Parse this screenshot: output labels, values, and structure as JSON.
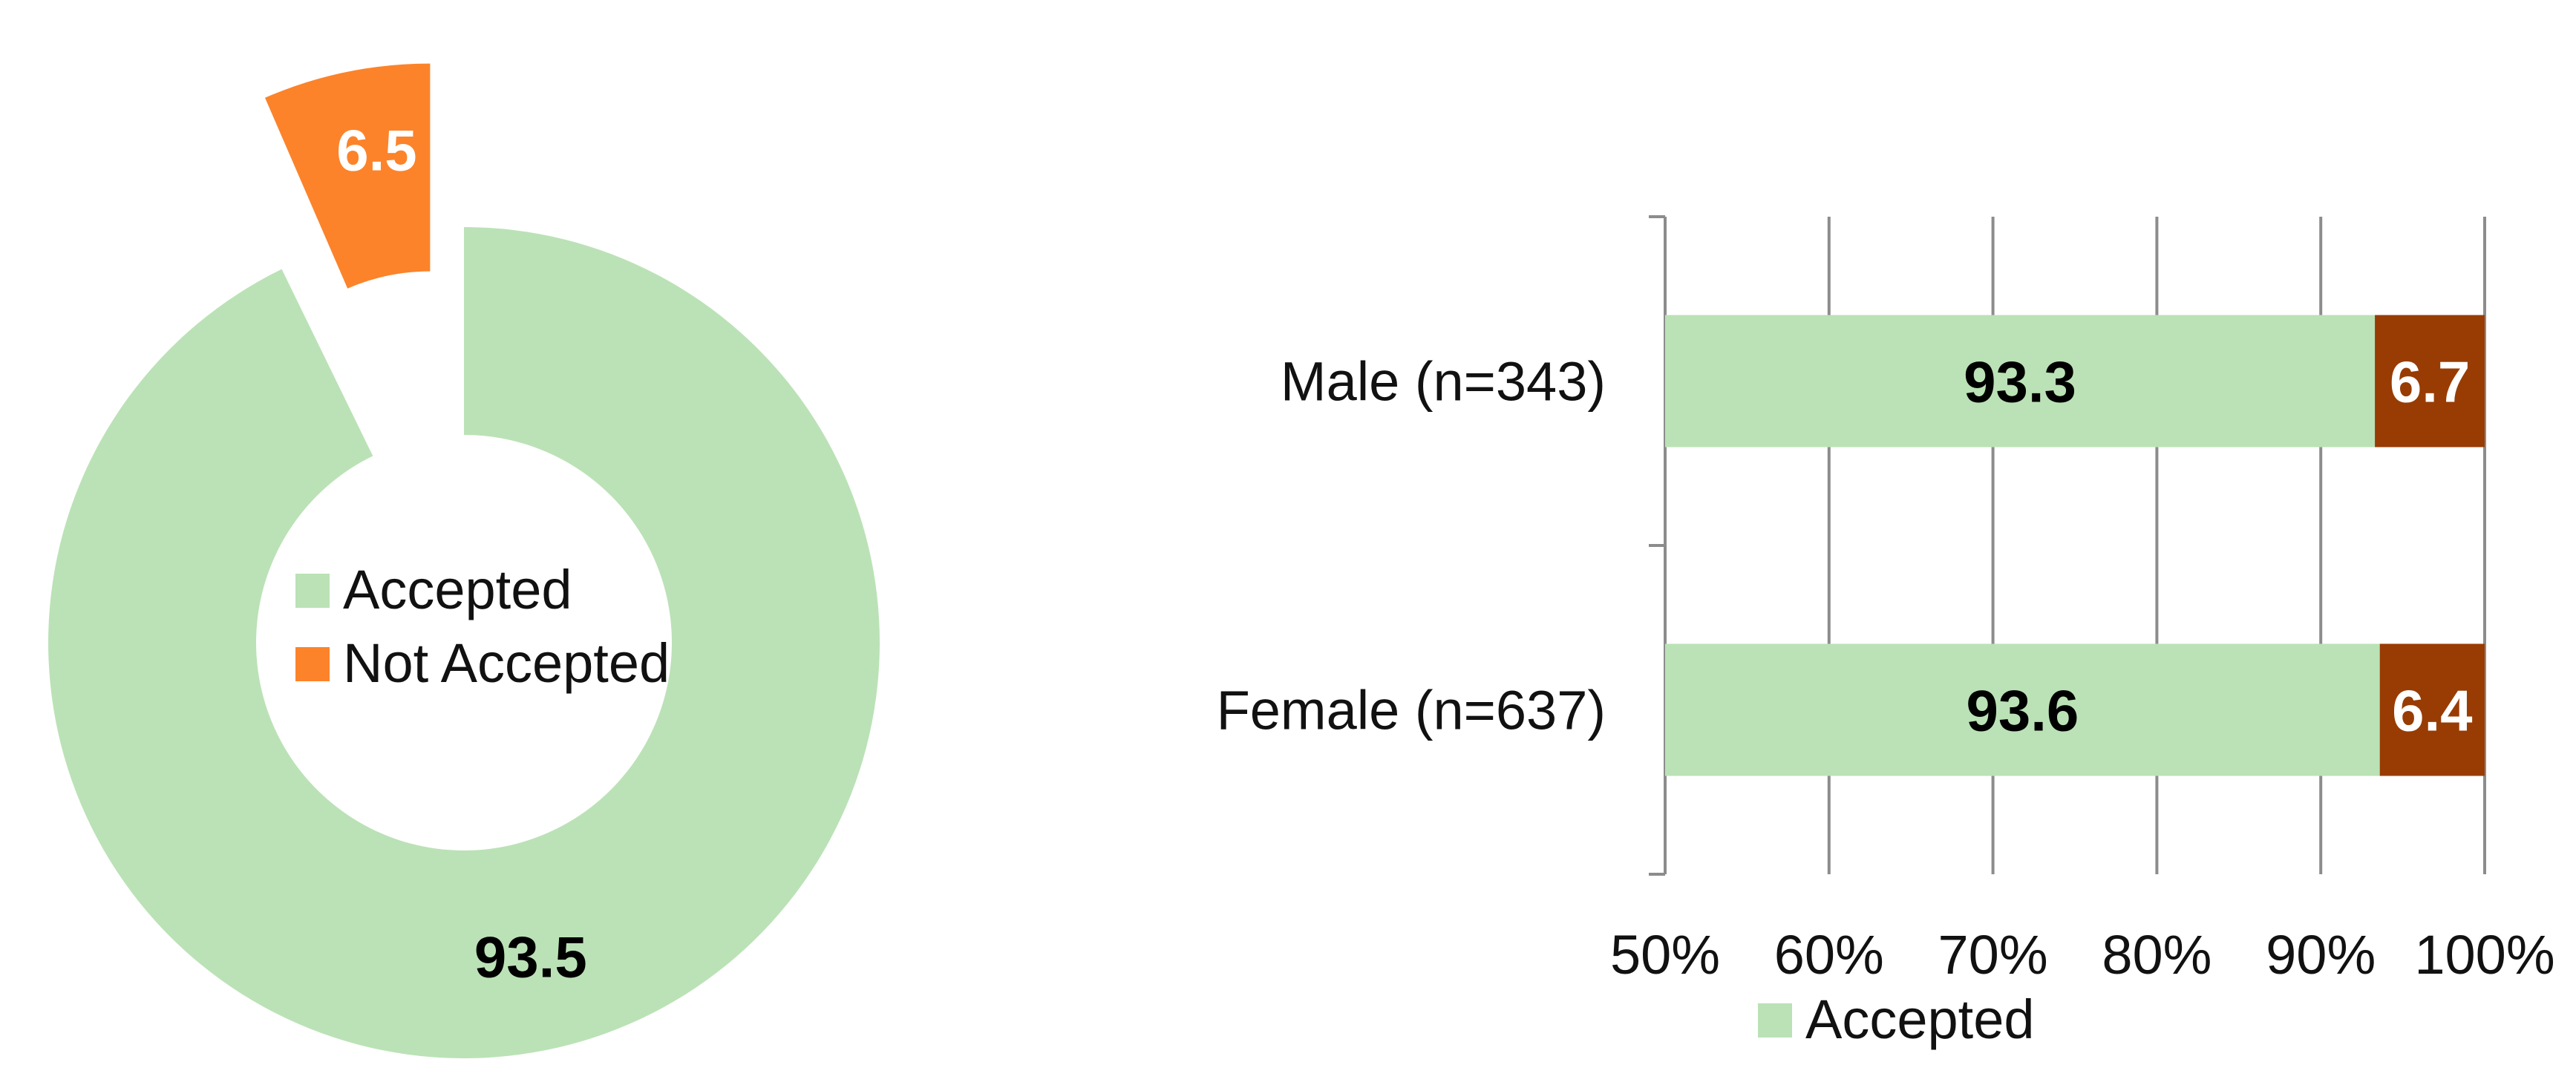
{
  "colors": {
    "accepted": "#bbe2b6",
    "not_accepted_donut": "#fc832a",
    "not_accepted_bar": "#983c04",
    "grid": "#8c8c8c"
  },
  "chart_data": [
    {
      "type": "pie",
      "variant": "donut",
      "exploded_slice": "Not Accepted",
      "categories": [
        "Accepted",
        "Not Accepted"
      ],
      "values": [
        93.5,
        6.5
      ],
      "data_labels": [
        "93.5",
        "6.5"
      ],
      "legend": {
        "placement": "center",
        "entries": [
          "Accepted",
          "Not Accepted"
        ]
      }
    },
    {
      "type": "bar",
      "orientation": "horizontal",
      "stacked": "percent",
      "categories": [
        "Male (n=343)",
        "Female (n=637)"
      ],
      "series": [
        {
          "name": "Accepted",
          "values": [
            93.3,
            93.6
          ],
          "data_labels": [
            "93.3",
            "93.6"
          ]
        },
        {
          "values": [
            6.7,
            6.4
          ],
          "data_labels": [
            "6.7",
            "6.4"
          ]
        }
      ],
      "xlim": [
        50,
        100
      ],
      "x_ticks": [
        "50%",
        "60%",
        "70%",
        "80%",
        "90%",
        "100%"
      ],
      "grid": true,
      "legend": {
        "placement": "bottom",
        "entries": [
          "Accepted"
        ]
      }
    }
  ]
}
